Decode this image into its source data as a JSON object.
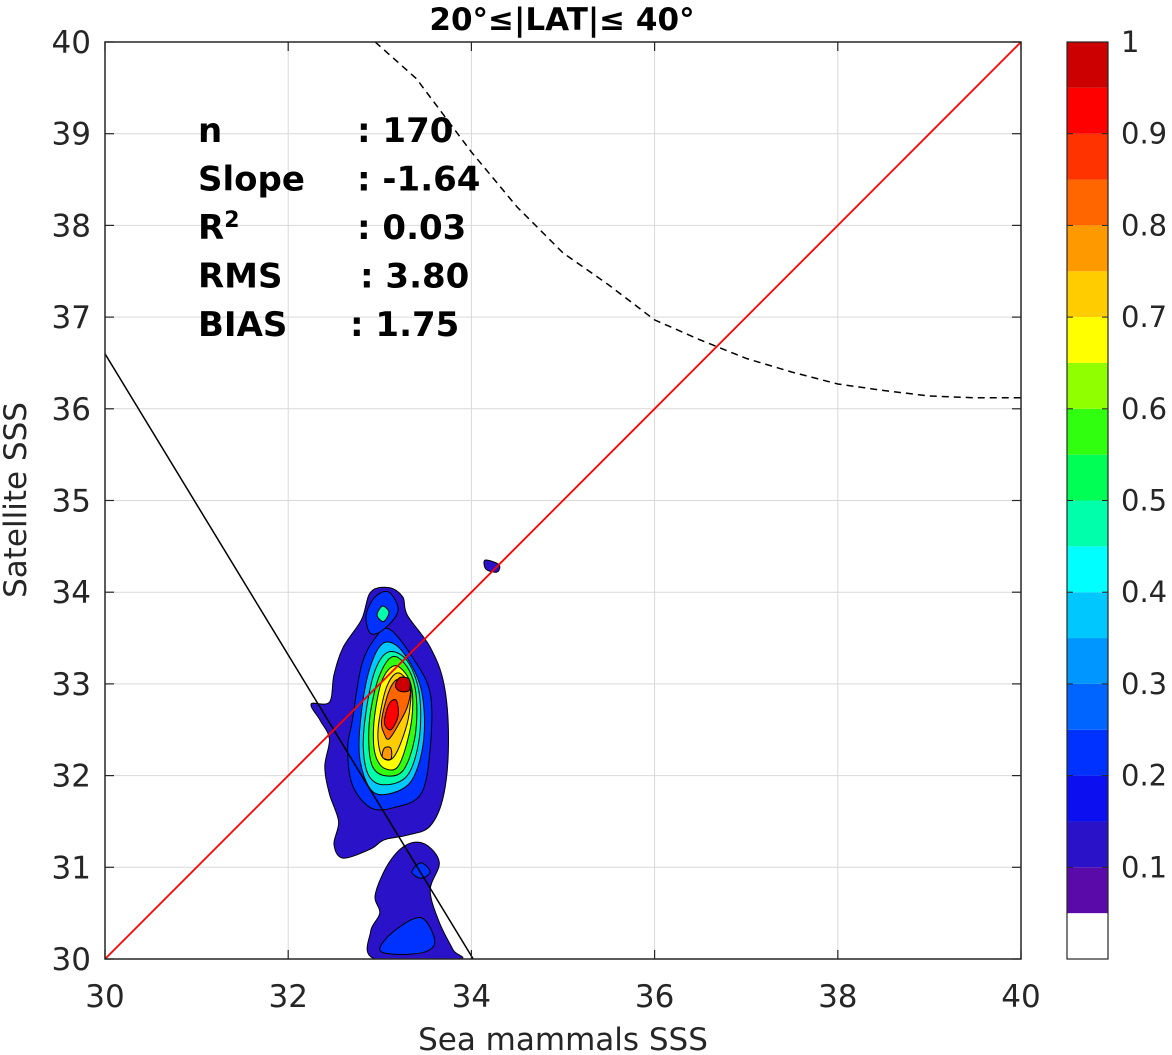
{
  "chart_data": {
    "type": "contour",
    "title": "20°≤|LAT|≤ 40°",
    "xlabel": "Sea mammals SSS",
    "ylabel": "Satellite SSS",
    "xlim": [
      30,
      40
    ],
    "ylim": [
      30,
      40
    ],
    "xticks": [
      "30",
      "32",
      "34",
      "36",
      "38",
      "40"
    ],
    "yticks": [
      "30",
      "31",
      "32",
      "33",
      "34",
      "35",
      "36",
      "37",
      "38",
      "39",
      "40"
    ],
    "grid": true,
    "stats": [
      {
        "label": "n",
        "value": ": 170"
      },
      {
        "label": "Slope",
        "value": ": -1.64"
      },
      {
        "label": "R",
        "sup": "2",
        "value": ": 0.03"
      },
      {
        "label": "RMS",
        "value": ": 3.80"
      },
      {
        "label": "BIAS",
        "value": ": 1.75"
      }
    ],
    "reference_line": {
      "name": "1:1",
      "color": "#ff0000",
      "x": [
        30,
        40
      ],
      "y": [
        30,
        40
      ]
    },
    "fit_line": {
      "slope": -1.64,
      "x": [
        30,
        34.02
      ],
      "y": [
        36.6,
        30
      ],
      "color": "#000000"
    },
    "dashed_curve": {
      "color": "#000000",
      "x": [
        32.95,
        33.4,
        34.0,
        34.5,
        35.0,
        35.5,
        36.0,
        36.5,
        37.0,
        37.5,
        38.0,
        38.5,
        39.0,
        39.5,
        40.0
      ],
      "y": [
        40.0,
        39.6,
        38.8,
        38.2,
        37.7,
        37.35,
        36.97,
        36.75,
        36.55,
        36.4,
        36.27,
        36.2,
        36.14,
        36.12,
        36.12
      ]
    },
    "colorbar": {
      "ticks": [
        "1",
        "0.9",
        "0.8",
        "0.7",
        "0.6",
        "0.5",
        "0.4",
        "0.3",
        "0.2",
        "0.1"
      ],
      "levels": [
        0,
        0.05,
        0.1,
        0.15,
        0.2,
        0.25,
        0.3,
        0.35,
        0.4,
        0.45,
        0.5,
        0.55,
        0.6,
        0.65,
        0.7,
        0.75,
        0.8,
        0.85,
        0.9,
        0.95,
        1.0
      ],
      "colors": [
        "#ffffff",
        "#5a0aa8",
        "#2a12c8",
        "#0c10f0",
        "#0032ff",
        "#0064ff",
        "#0096ff",
        "#00c8ff",
        "#00ffff",
        "#00ffaa",
        "#00ff55",
        "#30ff10",
        "#90ff00",
        "#ffff00",
        "#ffcc00",
        "#ff9900",
        "#ff6600",
        "#ff3300",
        "#ff0000",
        "#cc0000",
        "#880000"
      ]
    },
    "contours": [
      {
        "level": 0.1,
        "color": "#2a12c8",
        "points": [
          [
            32.25,
            32.78
          ],
          [
            32.45,
            32.8
          ],
          [
            32.5,
            33.1
          ],
          [
            32.6,
            33.4
          ],
          [
            32.8,
            33.7
          ],
          [
            32.9,
            34.0
          ],
          [
            33.1,
            34.05
          ],
          [
            33.25,
            33.95
          ],
          [
            33.3,
            33.75
          ],
          [
            33.55,
            33.4
          ],
          [
            33.7,
            33.0
          ],
          [
            33.75,
            32.4
          ],
          [
            33.7,
            31.8
          ],
          [
            33.55,
            31.45
          ],
          [
            33.3,
            31.35
          ],
          [
            33.05,
            31.3
          ],
          [
            32.9,
            31.2
          ],
          [
            32.6,
            31.1
          ],
          [
            32.5,
            31.25
          ],
          [
            32.55,
            31.5
          ],
          [
            32.45,
            31.8
          ],
          [
            32.4,
            32.1
          ],
          [
            32.45,
            32.4
          ],
          [
            32.35,
            32.6
          ]
        ]
      },
      {
        "level": 0.1,
        "color": "#2a12c8",
        "points": [
          [
            32.95,
            30.7
          ],
          [
            33.1,
            31.05
          ],
          [
            33.3,
            31.25
          ],
          [
            33.5,
            31.25
          ],
          [
            33.65,
            31.05
          ],
          [
            33.55,
            30.75
          ],
          [
            33.65,
            30.4
          ],
          [
            33.8,
            30.1
          ],
          [
            33.85,
            30.0
          ],
          [
            32.95,
            30.0
          ],
          [
            32.9,
            30.3
          ],
          [
            33.0,
            30.5
          ]
        ]
      },
      {
        "level": 0.1,
        "color": "#2a12c8",
        "points": [
          [
            34.15,
            34.35
          ],
          [
            34.3,
            34.3
          ],
          [
            34.28,
            34.22
          ],
          [
            34.16,
            34.25
          ]
        ]
      },
      {
        "level": 0.2,
        "color": "#0032ff",
        "points": [
          [
            32.7,
            32.6
          ],
          [
            32.8,
            33.2
          ],
          [
            32.95,
            33.5
          ],
          [
            33.1,
            33.6
          ],
          [
            33.35,
            33.3
          ],
          [
            33.55,
            32.9
          ],
          [
            33.55,
            32.3
          ],
          [
            33.45,
            31.8
          ],
          [
            33.15,
            31.65
          ],
          [
            32.9,
            31.65
          ],
          [
            32.7,
            31.9
          ],
          [
            32.65,
            32.3
          ]
        ]
      },
      {
        "level": 0.2,
        "color": "#0032ff",
        "points": [
          [
            33.0,
            30.1
          ],
          [
            33.15,
            30.3
          ],
          [
            33.45,
            30.45
          ],
          [
            33.6,
            30.2
          ],
          [
            33.5,
            30.08
          ],
          [
            33.2,
            30.05
          ]
        ]
      },
      {
        "level": 0.2,
        "color": "#0032ff",
        "points": [
          [
            32.85,
            33.75
          ],
          [
            32.95,
            33.95
          ],
          [
            33.1,
            34.0
          ],
          [
            33.2,
            33.8
          ],
          [
            33.05,
            33.6
          ],
          [
            32.9,
            33.55
          ]
        ]
      },
      {
        "level": 0.2,
        "color": "#0032ff",
        "points": [
          [
            33.35,
            30.95
          ],
          [
            33.45,
            31.05
          ],
          [
            33.55,
            30.95
          ],
          [
            33.45,
            30.88
          ]
        ]
      },
      {
        "level": 0.3,
        "color": "#00c8ff",
        "points": [
          [
            32.8,
            32.7
          ],
          [
            32.9,
            33.2
          ],
          [
            33.05,
            33.45
          ],
          [
            33.25,
            33.35
          ],
          [
            33.45,
            32.95
          ],
          [
            33.48,
            32.4
          ],
          [
            33.35,
            31.95
          ],
          [
            33.1,
            31.8
          ],
          [
            32.9,
            31.85
          ],
          [
            32.78,
            32.2
          ]
        ]
      },
      {
        "level": 0.4,
        "color": "#00ffaa",
        "points": [
          [
            32.85,
            32.7
          ],
          [
            32.95,
            33.15
          ],
          [
            33.1,
            33.35
          ],
          [
            33.3,
            33.25
          ],
          [
            33.43,
            32.9
          ],
          [
            33.43,
            32.4
          ],
          [
            33.3,
            32.0
          ],
          [
            33.05,
            31.9
          ],
          [
            32.88,
            32.0
          ],
          [
            32.82,
            32.3
          ]
        ]
      },
      {
        "level": 0.4,
        "color": "#00ffaa",
        "points": [
          [
            32.97,
            33.75
          ],
          [
            33.03,
            33.85
          ],
          [
            33.1,
            33.78
          ],
          [
            33.04,
            33.68
          ]
        ]
      },
      {
        "level": 0.5,
        "color": "#30ff10",
        "points": [
          [
            32.9,
            32.7
          ],
          [
            33.0,
            33.1
          ],
          [
            33.15,
            33.3
          ],
          [
            33.32,
            33.15
          ],
          [
            33.4,
            32.85
          ],
          [
            33.38,
            32.4
          ],
          [
            33.25,
            32.05
          ],
          [
            33.05,
            32.0
          ],
          [
            32.92,
            32.1
          ],
          [
            32.88,
            32.35
          ]
        ]
      },
      {
        "level": 0.6,
        "color": "#ffff00",
        "points": [
          [
            32.95,
            32.7
          ],
          [
            33.03,
            33.05
          ],
          [
            33.17,
            33.2
          ],
          [
            33.32,
            33.05
          ],
          [
            33.36,
            32.8
          ],
          [
            33.32,
            32.45
          ],
          [
            33.2,
            32.1
          ],
          [
            33.05,
            32.08
          ],
          [
            32.96,
            32.2
          ],
          [
            32.93,
            32.4
          ]
        ]
      },
      {
        "level": 0.7,
        "color": "#ffcc00",
        "points": [
          [
            33.0,
            32.65
          ],
          [
            33.08,
            32.98
          ],
          [
            33.2,
            33.12
          ],
          [
            33.33,
            32.98
          ],
          [
            33.33,
            32.75
          ],
          [
            33.28,
            32.5
          ],
          [
            33.15,
            32.2
          ],
          [
            33.03,
            32.2
          ],
          [
            32.98,
            32.4
          ]
        ]
      },
      {
        "level": 0.8,
        "color": "#ff6600",
        "points": [
          [
            33.02,
            32.6
          ],
          [
            33.1,
            32.92
          ],
          [
            33.2,
            33.05
          ],
          [
            33.33,
            32.95
          ],
          [
            33.3,
            32.75
          ],
          [
            33.2,
            32.55
          ],
          [
            33.1,
            32.4
          ],
          [
            33.05,
            32.45
          ]
        ]
      },
      {
        "level": 0.8,
        "color": "#ff9900",
        "points": [
          [
            33.03,
            32.2
          ],
          [
            33.05,
            32.3
          ],
          [
            33.12,
            32.3
          ],
          [
            33.12,
            32.18
          ]
        ]
      },
      {
        "level": 0.9,
        "color": "#ff0000",
        "points": [
          [
            33.05,
            32.58
          ],
          [
            33.1,
            32.78
          ],
          [
            33.18,
            32.82
          ],
          [
            33.2,
            32.65
          ],
          [
            33.12,
            32.5
          ]
        ]
      },
      {
        "level": 0.95,
        "color": "#cc0000",
        "points": [
          [
            33.17,
            32.98
          ],
          [
            33.22,
            33.07
          ],
          [
            33.32,
            33.05
          ],
          [
            33.32,
            32.93
          ],
          [
            33.22,
            32.92
          ]
        ]
      }
    ]
  }
}
